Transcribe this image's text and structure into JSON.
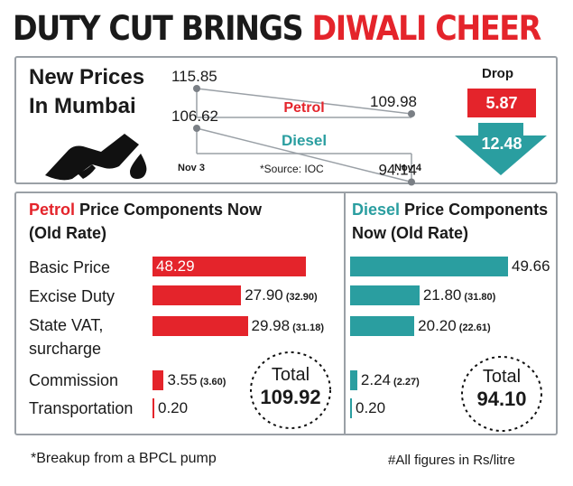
{
  "headline": {
    "part1": "DUTY CUT BRINGS ",
    "part2": "DIWALI CHEER"
  },
  "top": {
    "title_line1": "New Prices",
    "title_line2": "In Mumbai",
    "source": "*Source: IOC",
    "drop_label": "Drop",
    "petrol_drop": "5.87",
    "diesel_drop": "12.48",
    "colors": {
      "red": "#e4242b",
      "teal": "#2a9ea0"
    }
  },
  "chart_data": [
    {
      "type": "line",
      "x": [
        "Nov 3",
        "Nov 4"
      ],
      "series": [
        {
          "name": "Petrol",
          "values": [
            115.85,
            109.98
          ],
          "labels": [
            "115.85",
            "109.98"
          ]
        },
        {
          "name": "Diesel",
          "values": [
            106.62,
            94.14
          ],
          "labels": [
            "106.62",
            "94.14"
          ]
        }
      ],
      "ylim": [
        90,
        120
      ]
    },
    {
      "type": "bar",
      "title_highlight": "Petrol",
      "title_rest": " Price Components Now",
      "title_line2": "(Old Rate)",
      "categories": [
        "Basic Price",
        "Excise Duty",
        "State VAT, surcharge",
        "Commission",
        "Transportation"
      ],
      "category_lines": [
        [
          "Basic Price"
        ],
        [
          "Excise Duty"
        ],
        [
          "State VAT,",
          "surcharge"
        ],
        [
          "Commission"
        ],
        [
          "Transportation"
        ]
      ],
      "values": [
        48.29,
        27.9,
        29.98,
        3.55,
        0.2
      ],
      "value_labels": [
        "48.29",
        "27.90",
        "29.98",
        "3.55",
        "0.20"
      ],
      "old_labels": [
        "",
        "(32.90)",
        "(31.18)",
        "(3.60)",
        ""
      ],
      "total_label": "Total",
      "total_value": "109.92",
      "color": "#e4242b",
      "xlim": [
        0,
        60
      ]
    },
    {
      "type": "bar",
      "title_highlight": "Diesel",
      "title_rest": " Price Components",
      "title_line2": "Now (Old Rate)",
      "categories": [
        "Basic Price",
        "Excise Duty",
        "State VAT, surcharge",
        "Commission",
        "Transportation"
      ],
      "values": [
        49.66,
        21.8,
        20.2,
        2.24,
        0.2
      ],
      "value_labels": [
        "49.66",
        "21.80",
        "20.20",
        "2.24",
        "0.20"
      ],
      "old_labels": [
        "",
        "(31.80)",
        "(22.61)",
        "(2.27)",
        ""
      ],
      "total_label": "Total",
      "total_value": "94.10",
      "color": "#2a9ea0",
      "xlim": [
        0,
        60
      ]
    }
  ],
  "footer": {
    "left": "*Breakup from a BPCL pump",
    "right": "#All figures in Rs/litre"
  }
}
